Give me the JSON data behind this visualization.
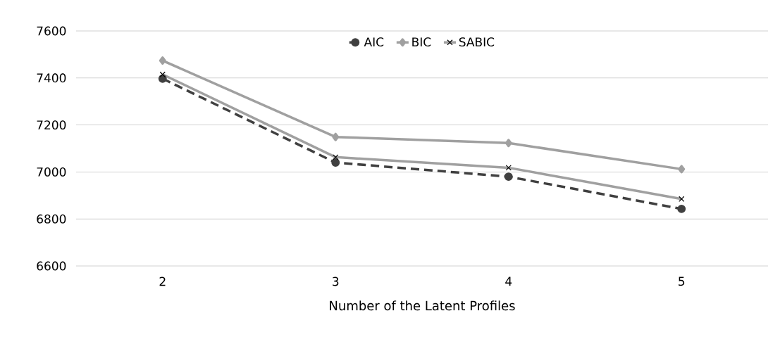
{
  "chart_data": {
    "type": "line",
    "xlabel": "Number of the Latent Profiles",
    "categories": [
      "2",
      "3",
      "4",
      "5"
    ],
    "series": [
      {
        "name": "AIC",
        "color": "#404040",
        "values": [
          7397,
          7040,
          6980,
          6843
        ],
        "marker": "circle",
        "line_style": "dashed"
      },
      {
        "name": "BIC",
        "color": "#a0a0a0",
        "values": [
          7474,
          7149,
          7123,
          7012
        ],
        "marker": "diamond",
        "line_style": "solid"
      },
      {
        "name": "SABIC",
        "color": "#a0a0a0",
        "values": [
          7415,
          7063,
          7018,
          6885
        ],
        "marker": "cross",
        "line_style": "solid"
      }
    ],
    "ylim": [
      6600,
      7600
    ],
    "yticks": [
      6600,
      6800,
      7000,
      7200,
      7400,
      7600
    ],
    "grid": "y",
    "legend": "top"
  }
}
